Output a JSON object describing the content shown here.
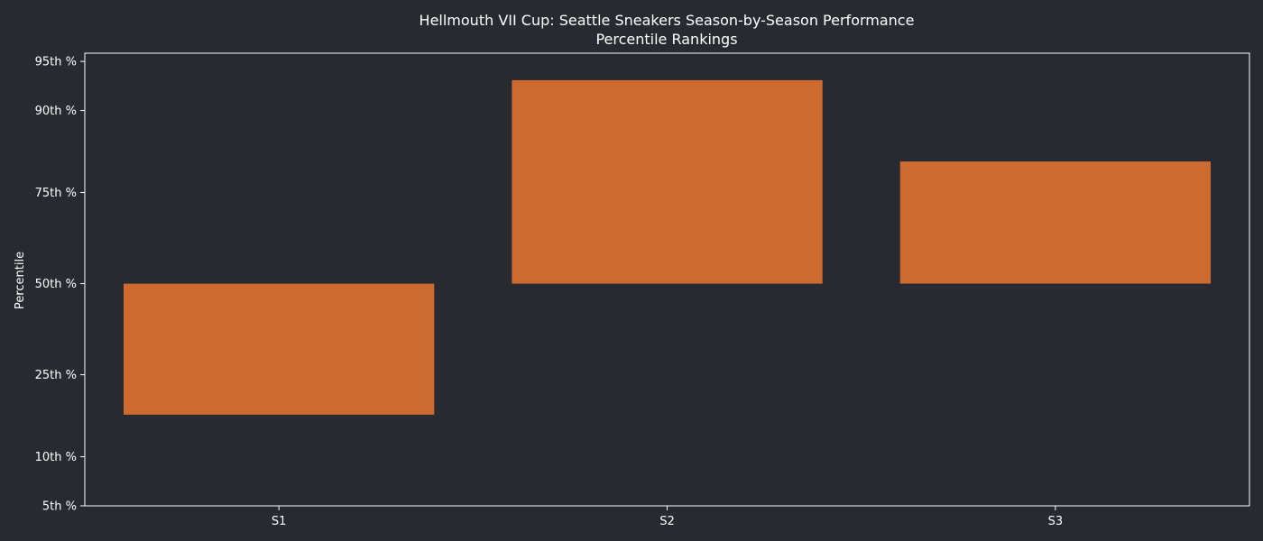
{
  "chart_data": {
    "type": "bar",
    "title": "Hellmouth VII Cup: Seattle Sneakers Season-by-Season Performance",
    "subtitle": "Percentile Rankings",
    "xlabel": "",
    "ylabel": "Percentile",
    "categories": [
      "S1",
      "S2",
      "S3"
    ],
    "bars": [
      {
        "category": "S1",
        "bottom": 16.6,
        "top": 50
      },
      {
        "category": "S2",
        "bottom": 50,
        "top": 93.4
      },
      {
        "category": "S3",
        "bottom": 50,
        "top": 81.7
      }
    ],
    "baseline": 50,
    "y_ticks": [
      {
        "value": 5,
        "label": "5th %"
      },
      {
        "value": 10,
        "label": "10th %"
      },
      {
        "value": 25,
        "label": "25th %"
      },
      {
        "value": 50,
        "label": "50th %"
      },
      {
        "value": 75,
        "label": "75th %"
      },
      {
        "value": 90,
        "label": "90th %"
      },
      {
        "value": 95,
        "label": "95th %"
      }
    ],
    "ylim": [
      5,
      95
    ],
    "grid": false,
    "legend": "none",
    "colors": {
      "background": "#272a31",
      "bar": "#cc6a30",
      "axis": "#ffffff",
      "text": "#ffffff"
    }
  }
}
